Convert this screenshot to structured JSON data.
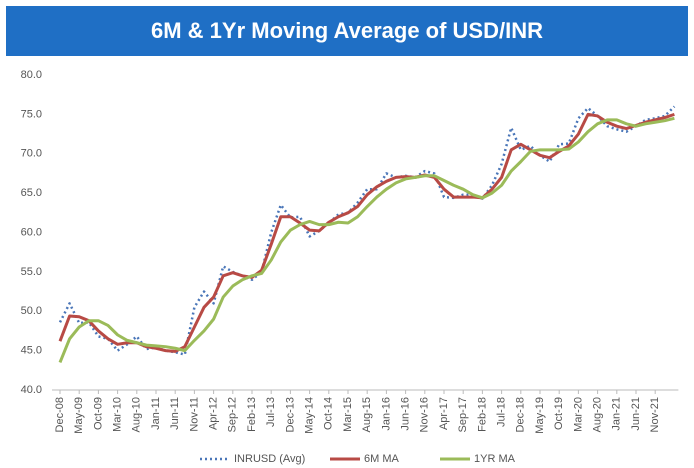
{
  "chart_data": {
    "type": "line",
    "title": "6M & 1Yr Moving Average of USD/INR",
    "categories": [
      "Dec-08",
      null,
      "May-09",
      null,
      "Oct-09",
      null,
      "Mar-10",
      null,
      "Aug-10",
      null,
      "Jan-11",
      null,
      "Jun-11",
      null,
      "Nov-11",
      null,
      "Apr-12",
      null,
      "Sep-12",
      null,
      "Feb-13",
      null,
      "Jul-13",
      null,
      "Dec-13",
      null,
      "May-14",
      null,
      "Oct-14",
      null,
      "Mar-15",
      null,
      "Aug-15",
      null,
      "Jan-16",
      null,
      "Jun-16",
      null,
      "Nov-16",
      null,
      "Apr-17",
      null,
      "Sep-17",
      null,
      "Feb-18",
      null,
      "Jul-18",
      null,
      "Dec-18",
      null,
      "May-19",
      null,
      "Oct-19",
      null,
      "Mar-20",
      null,
      "Aug-20",
      null,
      "Jan-21",
      null,
      "Jun-21",
      null,
      "Nov-21",
      null,
      null
    ],
    "series": [
      {
        "name": "INRUSD (Avg)",
        "color": "#4a76b8",
        "dash": true,
        "values": [
          48.6,
          51.0,
          48.5,
          48.6,
          46.8,
          46.5,
          45.0,
          45.8,
          46.8,
          45.2,
          45.4,
          45.0,
          44.8,
          44.5,
          50.5,
          52.5,
          51.0,
          55.7,
          55.0,
          54.5,
          54.0,
          55.0,
          60.0,
          63.5,
          61.9,
          62.0,
          59.5,
          60.2,
          61.2,
          62.3,
          62.5,
          63.8,
          65.5,
          65.5,
          67.5,
          67.0,
          67.2,
          67.0,
          67.8,
          67.5,
          64.5,
          64.4,
          64.8,
          64.8,
          64.3,
          66.0,
          68.7,
          73.3,
          70.5,
          71.0,
          69.8,
          69.0,
          71.2,
          71.3,
          74.5,
          75.8,
          74.8,
          73.5,
          73.1,
          72.8,
          73.5,
          74.3,
          74.5,
          74.8,
          76.0
        ]
      },
      {
        "name": "6M MA",
        "color": "#b84a45",
        "dash": false,
        "values": [
          46.2,
          49.4,
          49.3,
          48.8,
          47.5,
          46.5,
          45.8,
          46.0,
          46.0,
          45.5,
          45.3,
          45.0,
          44.9,
          45.5,
          48.0,
          50.5,
          51.8,
          54.5,
          54.9,
          54.5,
          54.3,
          55.2,
          58.5,
          62.0,
          62.0,
          61.2,
          60.3,
          60.2,
          61.3,
          62.0,
          62.5,
          63.3,
          64.8,
          65.8,
          66.5,
          67.0,
          67.1,
          67.0,
          67.3,
          67.0,
          65.5,
          64.5,
          64.5,
          64.5,
          64.4,
          65.5,
          67.0,
          70.5,
          71.2,
          70.5,
          69.8,
          69.5,
          70.3,
          71.0,
          72.5,
          75.0,
          74.8,
          74.0,
          73.5,
          73.2,
          73.6,
          74.0,
          74.3,
          74.6,
          75.0
        ]
      },
      {
        "name": "1YR MA",
        "color": "#9bbb59",
        "dash": false,
        "values": [
          43.5,
          46.5,
          48.0,
          48.8,
          48.8,
          48.2,
          47.0,
          46.3,
          46.0,
          45.7,
          45.6,
          45.5,
          45.3,
          45.0,
          46.3,
          47.5,
          49.0,
          51.8,
          53.2,
          54.0,
          54.5,
          54.8,
          56.5,
          58.8,
          60.3,
          61.0,
          61.4,
          61.0,
          61.0,
          61.3,
          61.2,
          62.0,
          63.3,
          64.5,
          65.5,
          66.3,
          66.8,
          67.0,
          67.2,
          67.2,
          66.6,
          66.0,
          65.5,
          64.8,
          64.4,
          65.0,
          66.0,
          67.8,
          69.0,
          70.3,
          70.5,
          70.5,
          70.5,
          70.6,
          71.5,
          72.8,
          73.8,
          74.3,
          74.3,
          73.8,
          73.5,
          73.8,
          74.0,
          74.2,
          74.5
        ]
      }
    ],
    "ylim": [
      40,
      80
    ],
    "yticks": [
      {
        "value": 40,
        "label": "40.0"
      },
      {
        "value": 45,
        "label": "45.0"
      },
      {
        "value": 50,
        "label": "50.0"
      },
      {
        "value": 55,
        "label": "55.0"
      },
      {
        "value": 60,
        "label": "60.0"
      },
      {
        "value": 65,
        "label": "65.0"
      },
      {
        "value": 70,
        "label": "70.0"
      },
      {
        "value": 75,
        "label": "75.0"
      },
      {
        "value": 80,
        "label": "80.0"
      }
    ],
    "grid": false,
    "legend": "bottom",
    "title_color": "#1f6fc5"
  }
}
